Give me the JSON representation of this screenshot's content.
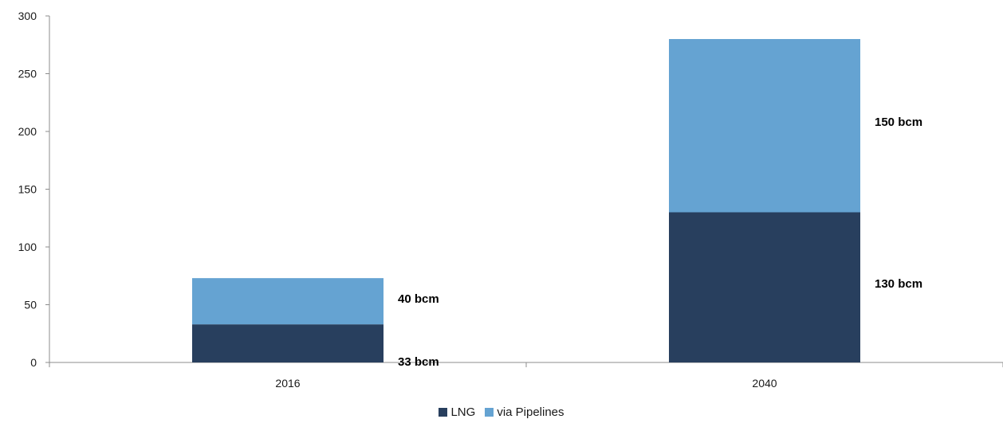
{
  "chart_data": {
    "type": "bar",
    "stacked": true,
    "categories": [
      "2016",
      "2040"
    ],
    "series": [
      {
        "name": "LNG",
        "values": [
          33,
          130
        ],
        "color": "#283f5e",
        "labels": [
          "33 bcm",
          "130 bcm"
        ]
      },
      {
        "name": "via Pipelines",
        "values": [
          40,
          150
        ],
        "color": "#65a3d2",
        "labels": [
          "40 bcm",
          "150 bcm"
        ]
      }
    ],
    "title": "",
    "xlabel": "",
    "ylabel": "",
    "ylim": [
      0,
      300
    ],
    "yticks": [
      0,
      50,
      100,
      150,
      200,
      250,
      300
    ],
    "grid": false,
    "legend_position": "bottom"
  }
}
